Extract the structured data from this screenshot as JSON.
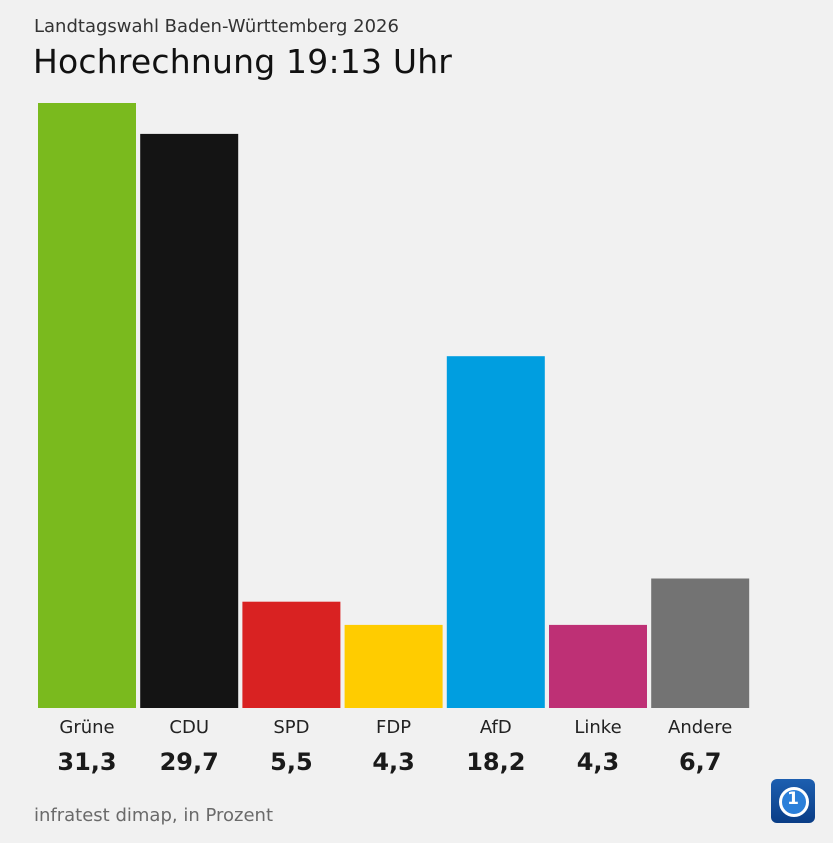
{
  "header": {
    "supertitle": "Landtagswahl Baden-Württemberg 2026",
    "title": "Hochrechnung 19:13 Uhr"
  },
  "footer": {
    "source": "infratest dimap, in Prozent",
    "logo_icon": "tagesschau-logo-icon"
  },
  "chart_data": {
    "type": "bar",
    "title": "Hochrechnung 19:13 Uhr",
    "xlabel": "",
    "ylabel": "",
    "ylim": [
      0,
      31.3
    ],
    "grid": false,
    "categories": [
      "Grüne",
      "CDU",
      "SPD",
      "FDP",
      "AfD",
      "Linke",
      "Andere"
    ],
    "values": [
      31.3,
      29.7,
      5.5,
      4.3,
      18.2,
      4.3,
      6.7
    ],
    "value_labels": [
      "31,3",
      "29,7",
      "5,5",
      "4,3",
      "18,2",
      "4,3",
      "6,7"
    ],
    "colors": [
      "#7aba1e",
      "#141414",
      "#d92222",
      "#ffcc00",
      "#009ee0",
      "#be3075",
      "#737373"
    ]
  }
}
